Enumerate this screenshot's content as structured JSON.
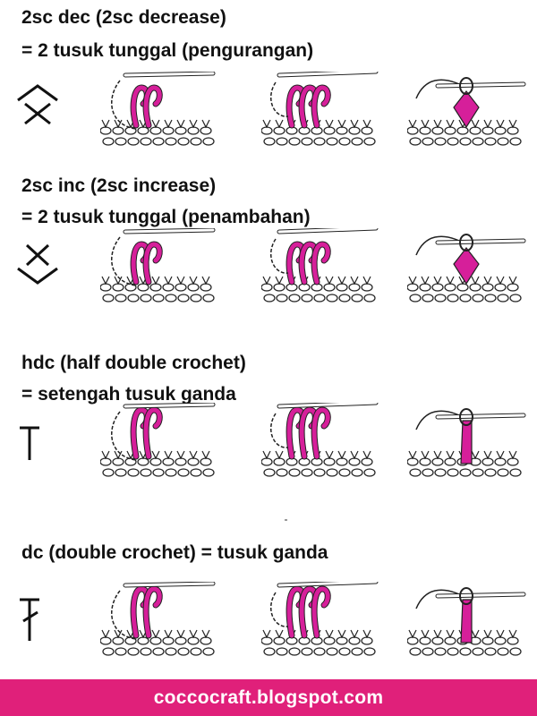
{
  "sections": [
    {
      "line1": "2sc dec (2sc decrease)",
      "line2": "= 2 tusuk tunggal (pengurangan)",
      "symbol": "2sc-decrease-symbol"
    },
    {
      "line1": "2sc inc (2sc increase)",
      "line2": "= 2 tusuk tunggal (penambahan)",
      "symbol": "2sc-increase-symbol"
    },
    {
      "line1": "hdc (half double crochet)",
      "line2": "= setengah tusuk ganda",
      "symbol": "hdc-symbol"
    },
    {
      "line1": "dc (double crochet) = tusuk ganda",
      "line2": "",
      "symbol": "dc-symbol"
    }
  ],
  "footer": {
    "site": "coccocraft.blogspot.com"
  },
  "colors": {
    "yarn": "#d61f9a",
    "footer_bg": "#e0207a",
    "ink": "#111111"
  }
}
